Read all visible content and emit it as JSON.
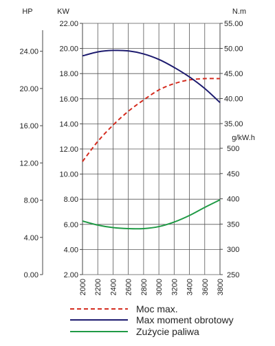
{
  "chart_data": {
    "type": "line",
    "x_axis": {
      "ticks": [
        "2000",
        "2200",
        "2400",
        "2600",
        "2800",
        "3000",
        "3200",
        "3400",
        "3600",
        "3800"
      ],
      "range": [
        2000,
        3800
      ],
      "vertical_tick_labels": true
    },
    "axes": {
      "hp": {
        "title": "HP",
        "ticks": [
          "0.00",
          "4.00",
          "8.00",
          "12.00",
          "16.00",
          "20.00",
          "24.00"
        ],
        "range": [
          0,
          27
        ]
      },
      "kw": {
        "title": "KW",
        "ticks": [
          "2.00",
          "4.00",
          "6.00",
          "8.00",
          "10.00",
          "12.00",
          "14.00",
          "16.00",
          "18.00",
          "20.00",
          "22.00"
        ],
        "range": [
          2,
          22
        ]
      },
      "nm": {
        "title": "N.m",
        "ticks": [
          "35.00",
          "40.00",
          "45.00",
          "50.00",
          "55.00"
        ],
        "range": [
          35,
          55
        ]
      },
      "gkwh": {
        "title": "g/kW.h",
        "ticks": [
          "250",
          "300",
          "350",
          "400",
          "450",
          "500"
        ],
        "range": [
          250,
          500
        ]
      }
    },
    "grid": true,
    "series": [
      {
        "name": "Moc max.",
        "axis": "kw",
        "style": "dashed",
        "color": "#d42b1e",
        "x": [
          2000,
          2200,
          2400,
          2600,
          2800,
          3000,
          3200,
          3400,
          3600,
          3800
        ],
        "y": [
          11.0,
          12.6,
          13.9,
          15.0,
          15.9,
          16.7,
          17.2,
          17.5,
          17.6,
          17.6
        ]
      },
      {
        "name": "Max moment obrotowy",
        "axis": "nm",
        "style": "solid",
        "color": "#1c1a6e",
        "x": [
          2000,
          2200,
          2400,
          2600,
          2800,
          3000,
          3200,
          3400,
          3600,
          3800
        ],
        "y": [
          48.5,
          49.3,
          49.6,
          49.5,
          48.9,
          47.8,
          46.2,
          44.3,
          42.0,
          39.2
        ]
      },
      {
        "name": "Zużycie paliwa",
        "axis": "gkwh",
        "style": "solid",
        "color": "#1f9a45",
        "x": [
          2000,
          2200,
          2400,
          2600,
          2800,
          3000,
          3200,
          3400,
          3600,
          3800
        ],
        "y": [
          356,
          348,
          343,
          341,
          341,
          345,
          354,
          367,
          383,
          398
        ]
      }
    ],
    "legend": {
      "placement": "bottom"
    }
  }
}
